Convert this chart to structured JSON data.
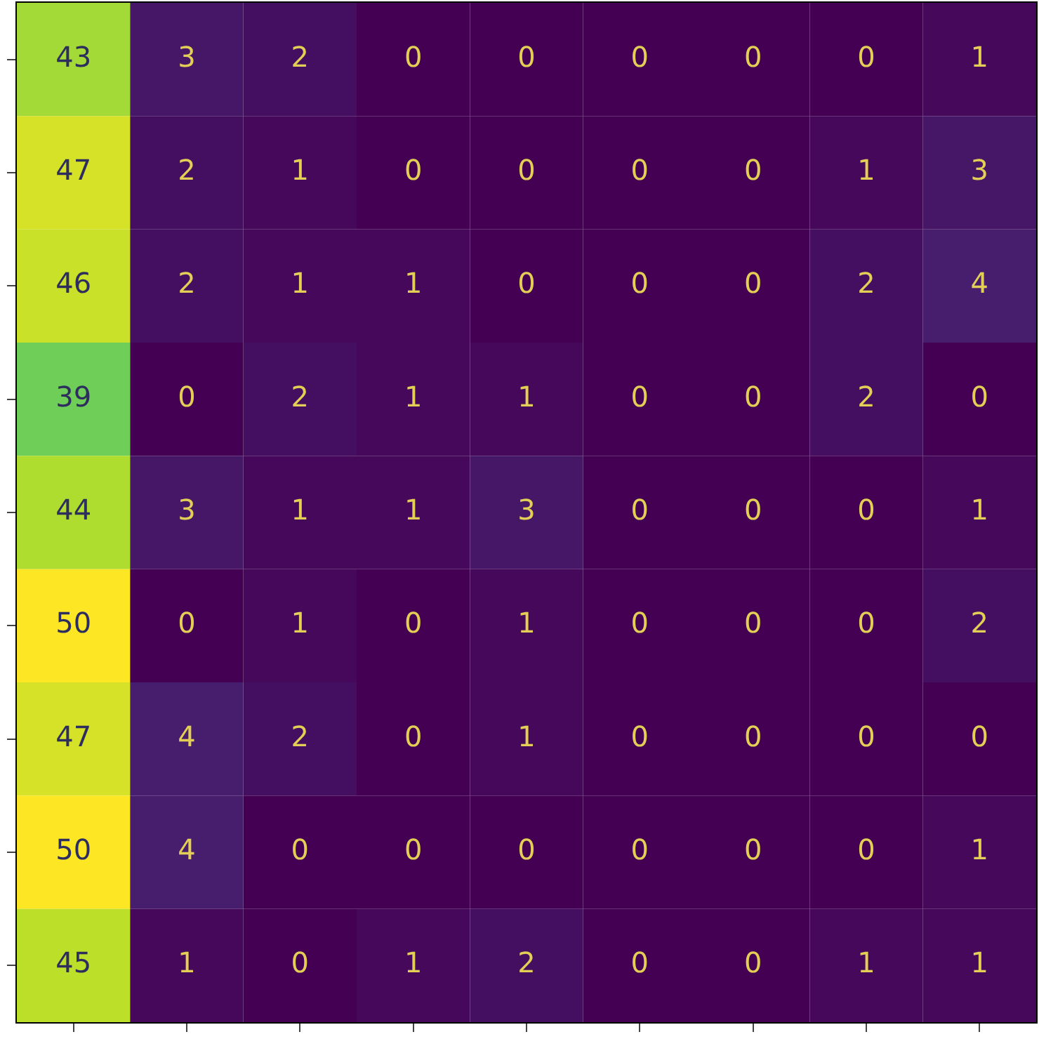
{
  "chart_data": {
    "type": "heatmap",
    "categories": [
      null,
      null,
      null,
      null,
      null,
      null,
      null,
      null,
      null
    ],
    "y_categories": [
      null,
      null,
      null,
      null,
      null,
      null,
      null,
      null,
      null
    ],
    "cells": [
      [
        43,
        3,
        2,
        0,
        0,
        0,
        0,
        0,
        1
      ],
      [
        47,
        2,
        1,
        0,
        0,
        0,
        0,
        1,
        3
      ],
      [
        46,
        2,
        1,
        1,
        0,
        0,
        0,
        2,
        4
      ],
      [
        39,
        0,
        2,
        1,
        1,
        0,
        0,
        2,
        0
      ],
      [
        44,
        3,
        1,
        1,
        3,
        0,
        0,
        0,
        1
      ],
      [
        50,
        0,
        1,
        0,
        1,
        0,
        0,
        0,
        2
      ],
      [
        47,
        4,
        2,
        0,
        1,
        0,
        0,
        0,
        0
      ],
      [
        50,
        4,
        0,
        0,
        0,
        0,
        0,
        0,
        1
      ],
      [
        45,
        1,
        0,
        1,
        2,
        0,
        0,
        1,
        1
      ]
    ],
    "data_labels": true,
    "grid": false
  }
}
